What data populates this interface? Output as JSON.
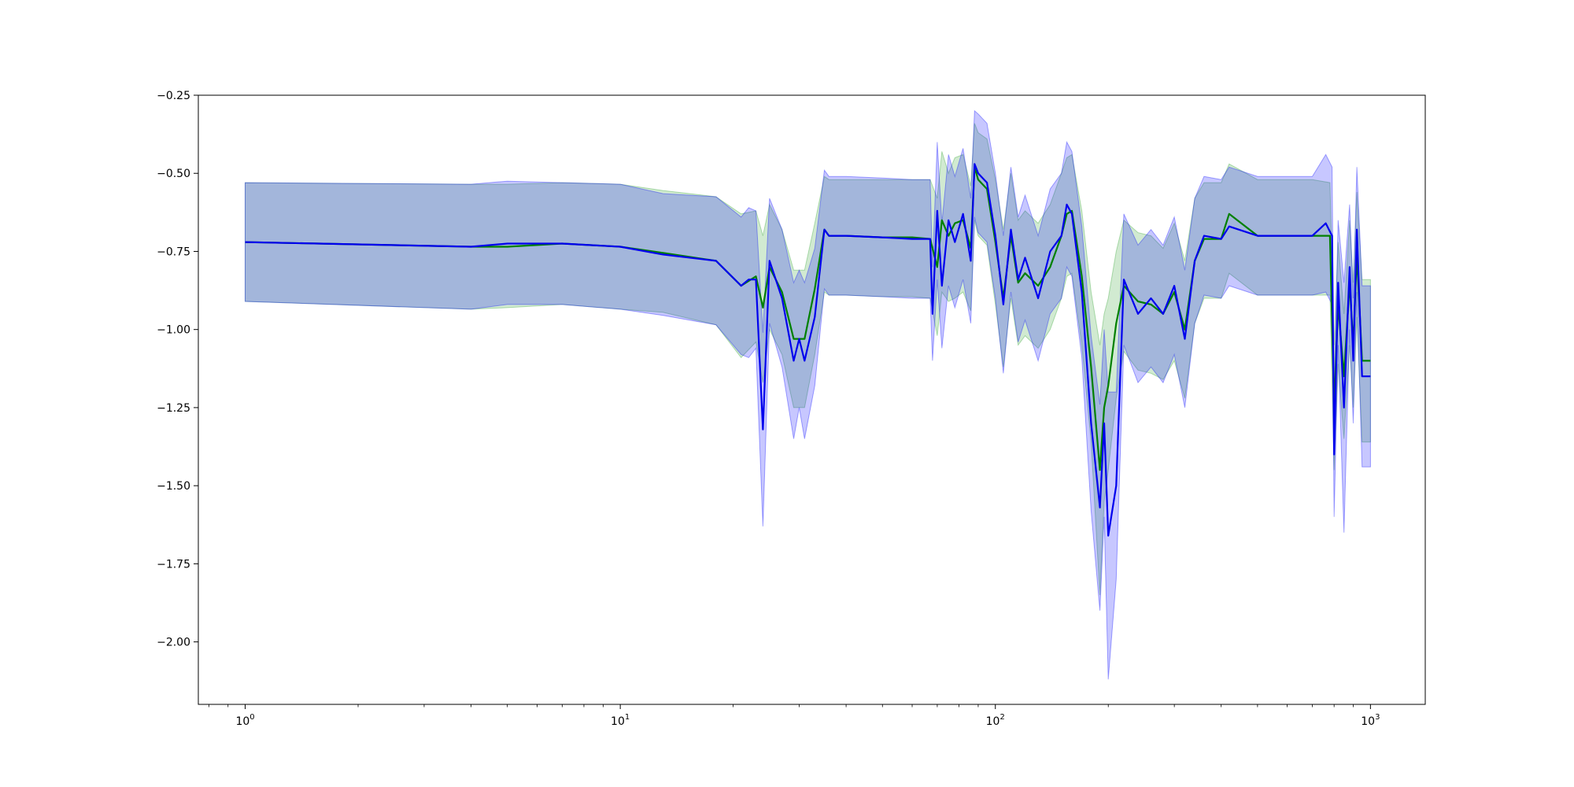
{
  "chart_data": {
    "type": "line",
    "x_scale": "log",
    "xlim": [
      0.75,
      1400
    ],
    "ylim": [
      -2.2,
      -0.25
    ],
    "grid": false,
    "legend": "none",
    "x_ticks": [
      {
        "base": "10",
        "exp": "0",
        "value": 1
      },
      {
        "base": "10",
        "exp": "1",
        "value": 10
      },
      {
        "base": "10",
        "exp": "2",
        "value": 100
      },
      {
        "base": "10",
        "exp": "3",
        "value": 1000
      }
    ],
    "y_ticks": [
      {
        "label": "−0.25",
        "value": -0.25
      },
      {
        "label": "−0.50",
        "value": -0.5
      },
      {
        "label": "−0.75",
        "value": -0.75
      },
      {
        "label": "−1.00",
        "value": -1.0
      },
      {
        "label": "−1.25",
        "value": -1.25
      },
      {
        "label": "−1.50",
        "value": -1.5
      },
      {
        "label": "−1.75",
        "value": -1.75
      },
      {
        "label": "−2.00",
        "value": -2.0
      }
    ],
    "series": [
      {
        "color": "#008000",
        "band_color": "#2ca02c",
        "x": [
          1,
          4,
          5,
          7,
          10,
          13,
          18,
          21,
          23,
          24,
          25,
          27,
          29,
          31,
          33,
          35,
          36,
          40,
          50,
          60,
          67,
          70,
          72,
          75,
          78,
          82,
          86,
          88,
          90,
          95,
          100,
          105,
          110,
          115,
          120,
          130,
          140,
          150,
          155,
          160,
          170,
          180,
          190,
          195,
          200,
          210,
          220,
          240,
          260,
          280,
          300,
          320,
          340,
          360,
          400,
          420,
          500,
          600,
          700,
          780,
          800,
          820,
          850,
          880,
          900,
          920,
          950,
          1000
        ],
        "y": [
          -0.72,
          -0.735,
          -0.735,
          -0.725,
          -0.735,
          -0.755,
          -0.78,
          -0.86,
          -0.83,
          -0.93,
          -0.8,
          -0.88,
          -1.03,
          -1.03,
          -0.87,
          -0.68,
          -0.7,
          -0.7,
          -0.705,
          -0.705,
          -0.71,
          -0.8,
          -0.65,
          -0.7,
          -0.66,
          -0.65,
          -0.74,
          -0.48,
          -0.52,
          -0.55,
          -0.72,
          -0.9,
          -0.7,
          -0.85,
          -0.82,
          -0.86,
          -0.8,
          -0.7,
          -0.63,
          -0.62,
          -0.83,
          -1.12,
          -1.45,
          -1.25,
          -1.18,
          -0.98,
          -0.86,
          -0.91,
          -0.92,
          -0.95,
          -0.88,
          -1.0,
          -0.78,
          -0.71,
          -0.71,
          -0.63,
          -0.7,
          -0.7,
          -0.7,
          -0.7,
          -1.25,
          -0.92,
          -1.15,
          -0.85,
          -1.05,
          -0.76,
          -1.1,
          -1.1
        ],
        "lower": [
          -0.91,
          -0.935,
          -0.93,
          -0.92,
          -0.935,
          -0.945,
          -0.985,
          -1.09,
          -1.04,
          -1.17,
          -1.0,
          -1.08,
          -1.25,
          -1.25,
          -1.08,
          -0.88,
          -0.89,
          -0.89,
          -0.895,
          -0.895,
          -0.9,
          -1.02,
          -0.88,
          -0.91,
          -0.9,
          -0.88,
          -0.94,
          -0.65,
          -0.7,
          -0.73,
          -0.92,
          -1.12,
          -0.9,
          -1.05,
          -1.02,
          -1.06,
          -1.0,
          -0.9,
          -0.83,
          -0.82,
          -1.05,
          -1.36,
          -1.85,
          -1.55,
          -1.45,
          -1.22,
          -1.07,
          -1.13,
          -1.14,
          -1.16,
          -1.1,
          -1.22,
          -0.98,
          -0.9,
          -0.9,
          -0.82,
          -0.89,
          -0.89,
          -0.89,
          -0.89,
          -1.45,
          -1.11,
          -1.35,
          -1.05,
          -1.25,
          -0.96,
          -1.36,
          -1.36
        ],
        "upper": [
          -0.53,
          -0.535,
          -0.535,
          -0.53,
          -0.535,
          -0.555,
          -0.575,
          -0.63,
          -0.62,
          -0.7,
          -0.6,
          -0.68,
          -0.81,
          -0.81,
          -0.66,
          -0.51,
          -0.52,
          -0.52,
          -0.52,
          -0.52,
          -0.52,
          -0.58,
          -0.43,
          -0.5,
          -0.45,
          -0.44,
          -0.54,
          -0.34,
          -0.37,
          -0.39,
          -0.52,
          -0.68,
          -0.5,
          -0.65,
          -0.62,
          -0.66,
          -0.6,
          -0.5,
          -0.45,
          -0.44,
          -0.62,
          -0.88,
          -1.05,
          -0.95,
          -0.9,
          -0.75,
          -0.65,
          -0.69,
          -0.7,
          -0.74,
          -0.66,
          -0.78,
          -0.58,
          -0.53,
          -0.53,
          -0.47,
          -0.52,
          -0.52,
          -0.52,
          -0.53,
          -1.05,
          -0.72,
          -0.95,
          -0.65,
          -0.85,
          -0.56,
          -0.84,
          -0.84
        ]
      },
      {
        "color": "#0000ee",
        "band_color": "#0000ff",
        "x": [
          1,
          4,
          5,
          7,
          10,
          13,
          18,
          21,
          22,
          23,
          24,
          25,
          27,
          29,
          30,
          31,
          33,
          35,
          36,
          40,
          50,
          60,
          67,
          68,
          70,
          72,
          75,
          78,
          82,
          86,
          88,
          90,
          95,
          100,
          105,
          110,
          115,
          120,
          130,
          140,
          150,
          155,
          160,
          170,
          180,
          190,
          195,
          200,
          210,
          220,
          240,
          260,
          280,
          300,
          320,
          340,
          360,
          400,
          420,
          500,
          600,
          700,
          760,
          790,
          800,
          820,
          850,
          880,
          900,
          920,
          950,
          1000
        ],
        "y": [
          -0.72,
          -0.735,
          -0.725,
          -0.725,
          -0.735,
          -0.76,
          -0.78,
          -0.86,
          -0.84,
          -0.84,
          -1.32,
          -0.78,
          -0.9,
          -1.1,
          -1.03,
          -1.1,
          -0.96,
          -0.68,
          -0.7,
          -0.7,
          -0.705,
          -0.71,
          -0.71,
          -0.95,
          -0.62,
          -0.86,
          -0.65,
          -0.72,
          -0.63,
          -0.78,
          -0.47,
          -0.5,
          -0.53,
          -0.7,
          -0.92,
          -0.68,
          -0.84,
          -0.77,
          -0.9,
          -0.75,
          -0.7,
          -0.6,
          -0.63,
          -0.88,
          -1.3,
          -1.57,
          -1.3,
          -1.66,
          -1.5,
          -0.84,
          -0.95,
          -0.9,
          -0.95,
          -0.86,
          -1.03,
          -0.78,
          -0.7,
          -0.71,
          -0.67,
          -0.7,
          -0.7,
          -0.7,
          -0.66,
          -0.7,
          -1.4,
          -0.85,
          -1.25,
          -0.8,
          -1.1,
          -0.68,
          -1.15,
          -1.15
        ],
        "lower": [
          -0.91,
          -0.935,
          -0.92,
          -0.92,
          -0.935,
          -0.955,
          -0.985,
          -1.08,
          -1.09,
          -1.06,
          -1.63,
          -0.98,
          -1.12,
          -1.35,
          -1.25,
          -1.35,
          -1.18,
          -0.87,
          -0.89,
          -0.89,
          -0.895,
          -0.9,
          -0.9,
          -1.1,
          -0.84,
          -1.06,
          -0.86,
          -0.93,
          -0.84,
          -0.98,
          -0.64,
          -0.69,
          -0.72,
          -0.9,
          -1.14,
          -0.88,
          -1.04,
          -0.97,
          -1.1,
          -0.95,
          -0.9,
          -0.8,
          -0.83,
          -1.09,
          -1.58,
          -1.9,
          -1.6,
          -2.12,
          -1.8,
          -1.05,
          -1.17,
          -1.12,
          -1.17,
          -1.08,
          -1.25,
          -0.98,
          -0.89,
          -0.9,
          -0.86,
          -0.89,
          -0.89,
          -0.89,
          -0.88,
          -0.92,
          -1.6,
          -1.05,
          -1.65,
          -1.0,
          -1.3,
          -0.88,
          -1.44,
          -1.44
        ],
        "upper": [
          -0.53,
          -0.535,
          -0.525,
          -0.53,
          -0.535,
          -0.565,
          -0.575,
          -0.64,
          -0.61,
          -0.62,
          -1.01,
          -0.58,
          -0.68,
          -0.85,
          -0.81,
          -0.85,
          -0.74,
          -0.49,
          -0.51,
          -0.51,
          -0.515,
          -0.52,
          -0.52,
          -0.8,
          -0.4,
          -0.66,
          -0.44,
          -0.51,
          -0.42,
          -0.58,
          -0.3,
          -0.31,
          -0.34,
          -0.5,
          -0.7,
          -0.48,
          -0.64,
          -0.57,
          -0.7,
          -0.55,
          -0.5,
          -0.4,
          -0.43,
          -0.67,
          -1.02,
          -1.24,
          -1.0,
          -1.2,
          -1.2,
          -0.63,
          -0.73,
          -0.68,
          -0.73,
          -0.64,
          -0.81,
          -0.58,
          -0.51,
          -0.52,
          -0.48,
          -0.51,
          -0.51,
          -0.51,
          -0.44,
          -0.48,
          -1.2,
          -0.65,
          -0.85,
          -0.6,
          -0.9,
          -0.48,
          -0.86,
          -0.86
        ]
      }
    ]
  }
}
